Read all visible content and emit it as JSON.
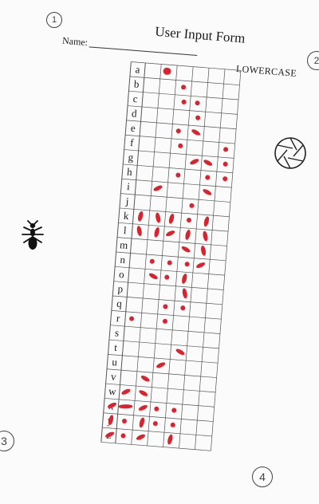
{
  "form": {
    "title": "User Input Form",
    "name_label": "Name:",
    "case_label": "LOWERCASE"
  },
  "markers": [
    "1",
    "2",
    "3",
    "4"
  ],
  "icons": {
    "aperture": "aperture-icon",
    "ant": "ant-icon"
  },
  "colors": {
    "mark": "#d8242f",
    "grid": "#555555",
    "ink": "#1a1a1a"
  },
  "grid": {
    "letters": [
      "a",
      "b",
      "c",
      "d",
      "e",
      "f",
      "g",
      "h",
      "i",
      "j",
      "k",
      "l",
      "m",
      "n",
      "o",
      "p",
      "q",
      "r",
      "s",
      "t",
      "u",
      "v",
      "w",
      "x",
      "y",
      "z"
    ],
    "columns": 6,
    "marks": [
      {
        "row": 0,
        "col": 1,
        "kind": "blob"
      },
      {
        "row": 1,
        "col": 2,
        "kind": "dot"
      },
      {
        "row": 2,
        "col": 2,
        "kind": "dot"
      },
      {
        "row": 2,
        "col": 3,
        "kind": "dot"
      },
      {
        "row": 3,
        "col": 3,
        "kind": "dot"
      },
      {
        "row": 4,
        "col": 2,
        "kind": "dot"
      },
      {
        "row": 4,
        "col": 3,
        "kind": "dash"
      },
      {
        "row": 5,
        "col": 2,
        "kind": "dot"
      },
      {
        "row": 5,
        "col": 5,
        "kind": "dot"
      },
      {
        "row": 6,
        "col": 3,
        "kind": "dash"
      },
      {
        "row": 6,
        "col": 4,
        "kind": "dash"
      },
      {
        "row": 6,
        "col": 5,
        "kind": "dot"
      },
      {
        "row": 7,
        "col": 2,
        "kind": "dot"
      },
      {
        "row": 7,
        "col": 4,
        "kind": "dot"
      },
      {
        "row": 7,
        "col": 5,
        "kind": "dot"
      },
      {
        "row": 8,
        "col": 1,
        "kind": "dash"
      },
      {
        "row": 8,
        "col": 4,
        "kind": "dash"
      },
      {
        "row": 9,
        "col": 3,
        "kind": "dot"
      },
      {
        "row": 10,
        "col": 0,
        "kind": "vdash"
      },
      {
        "row": 10,
        "col": 1,
        "kind": "vdash"
      },
      {
        "row": 10,
        "col": 2,
        "kind": "vdash"
      },
      {
        "row": 10,
        "col": 3,
        "kind": "dot"
      },
      {
        "row": 10,
        "col": 4,
        "kind": "vdash"
      },
      {
        "row": 11,
        "col": 0,
        "kind": "vdash"
      },
      {
        "row": 11,
        "col": 1,
        "kind": "vdash"
      },
      {
        "row": 11,
        "col": 2,
        "kind": "dash"
      },
      {
        "row": 11,
        "col": 3,
        "kind": "vdash"
      },
      {
        "row": 11,
        "col": 4,
        "kind": "vdash"
      },
      {
        "row": 12,
        "col": 3,
        "kind": "dash"
      },
      {
        "row": 12,
        "col": 4,
        "kind": "vdash"
      },
      {
        "row": 13,
        "col": 1,
        "kind": "dot"
      },
      {
        "row": 13,
        "col": 2,
        "kind": "dot"
      },
      {
        "row": 13,
        "col": 3,
        "kind": "dot"
      },
      {
        "row": 13,
        "col": 4,
        "kind": "dash"
      },
      {
        "row": 14,
        "col": 1,
        "kind": "dash"
      },
      {
        "row": 14,
        "col": 2,
        "kind": "dot"
      },
      {
        "row": 14,
        "col": 3,
        "kind": "vdash"
      },
      {
        "row": 15,
        "col": 3,
        "kind": "vdash"
      },
      {
        "row": 16,
        "col": 2,
        "kind": "dot"
      },
      {
        "row": 16,
        "col": 3,
        "kind": "dot"
      },
      {
        "row": 17,
        "col": 0,
        "kind": "dot"
      },
      {
        "row": 17,
        "col": 2,
        "kind": "dot"
      },
      {
        "row": 19,
        "col": 3,
        "kind": "dash"
      },
      {
        "row": 20,
        "col": 2,
        "kind": "dash"
      },
      {
        "row": 21,
        "col": 1,
        "kind": "dash"
      },
      {
        "row": 22,
        "col": 0,
        "kind": "dash"
      },
      {
        "row": 22,
        "col": 1,
        "kind": "dash"
      },
      {
        "row": 23,
        "col": -1,
        "kind": "dash"
      },
      {
        "row": 23,
        "col": 0,
        "kind": "wide"
      },
      {
        "row": 23,
        "col": 1,
        "kind": "dash"
      },
      {
        "row": 23,
        "col": 2,
        "kind": "dot"
      },
      {
        "row": 23,
        "col": 3,
        "kind": "dot"
      },
      {
        "row": 24,
        "col": -1,
        "kind": "vdash"
      },
      {
        "row": 24,
        "col": 0,
        "kind": "dot"
      },
      {
        "row": 24,
        "col": 1,
        "kind": "vdash"
      },
      {
        "row": 24,
        "col": 2,
        "kind": "dot"
      },
      {
        "row": 24,
        "col": 3,
        "kind": "dot"
      },
      {
        "row": 25,
        "col": -1,
        "kind": "dash"
      },
      {
        "row": 25,
        "col": 0,
        "kind": "dot"
      },
      {
        "row": 25,
        "col": 1,
        "kind": "dash"
      },
      {
        "row": 25,
        "col": 3,
        "kind": "vdash"
      }
    ]
  }
}
